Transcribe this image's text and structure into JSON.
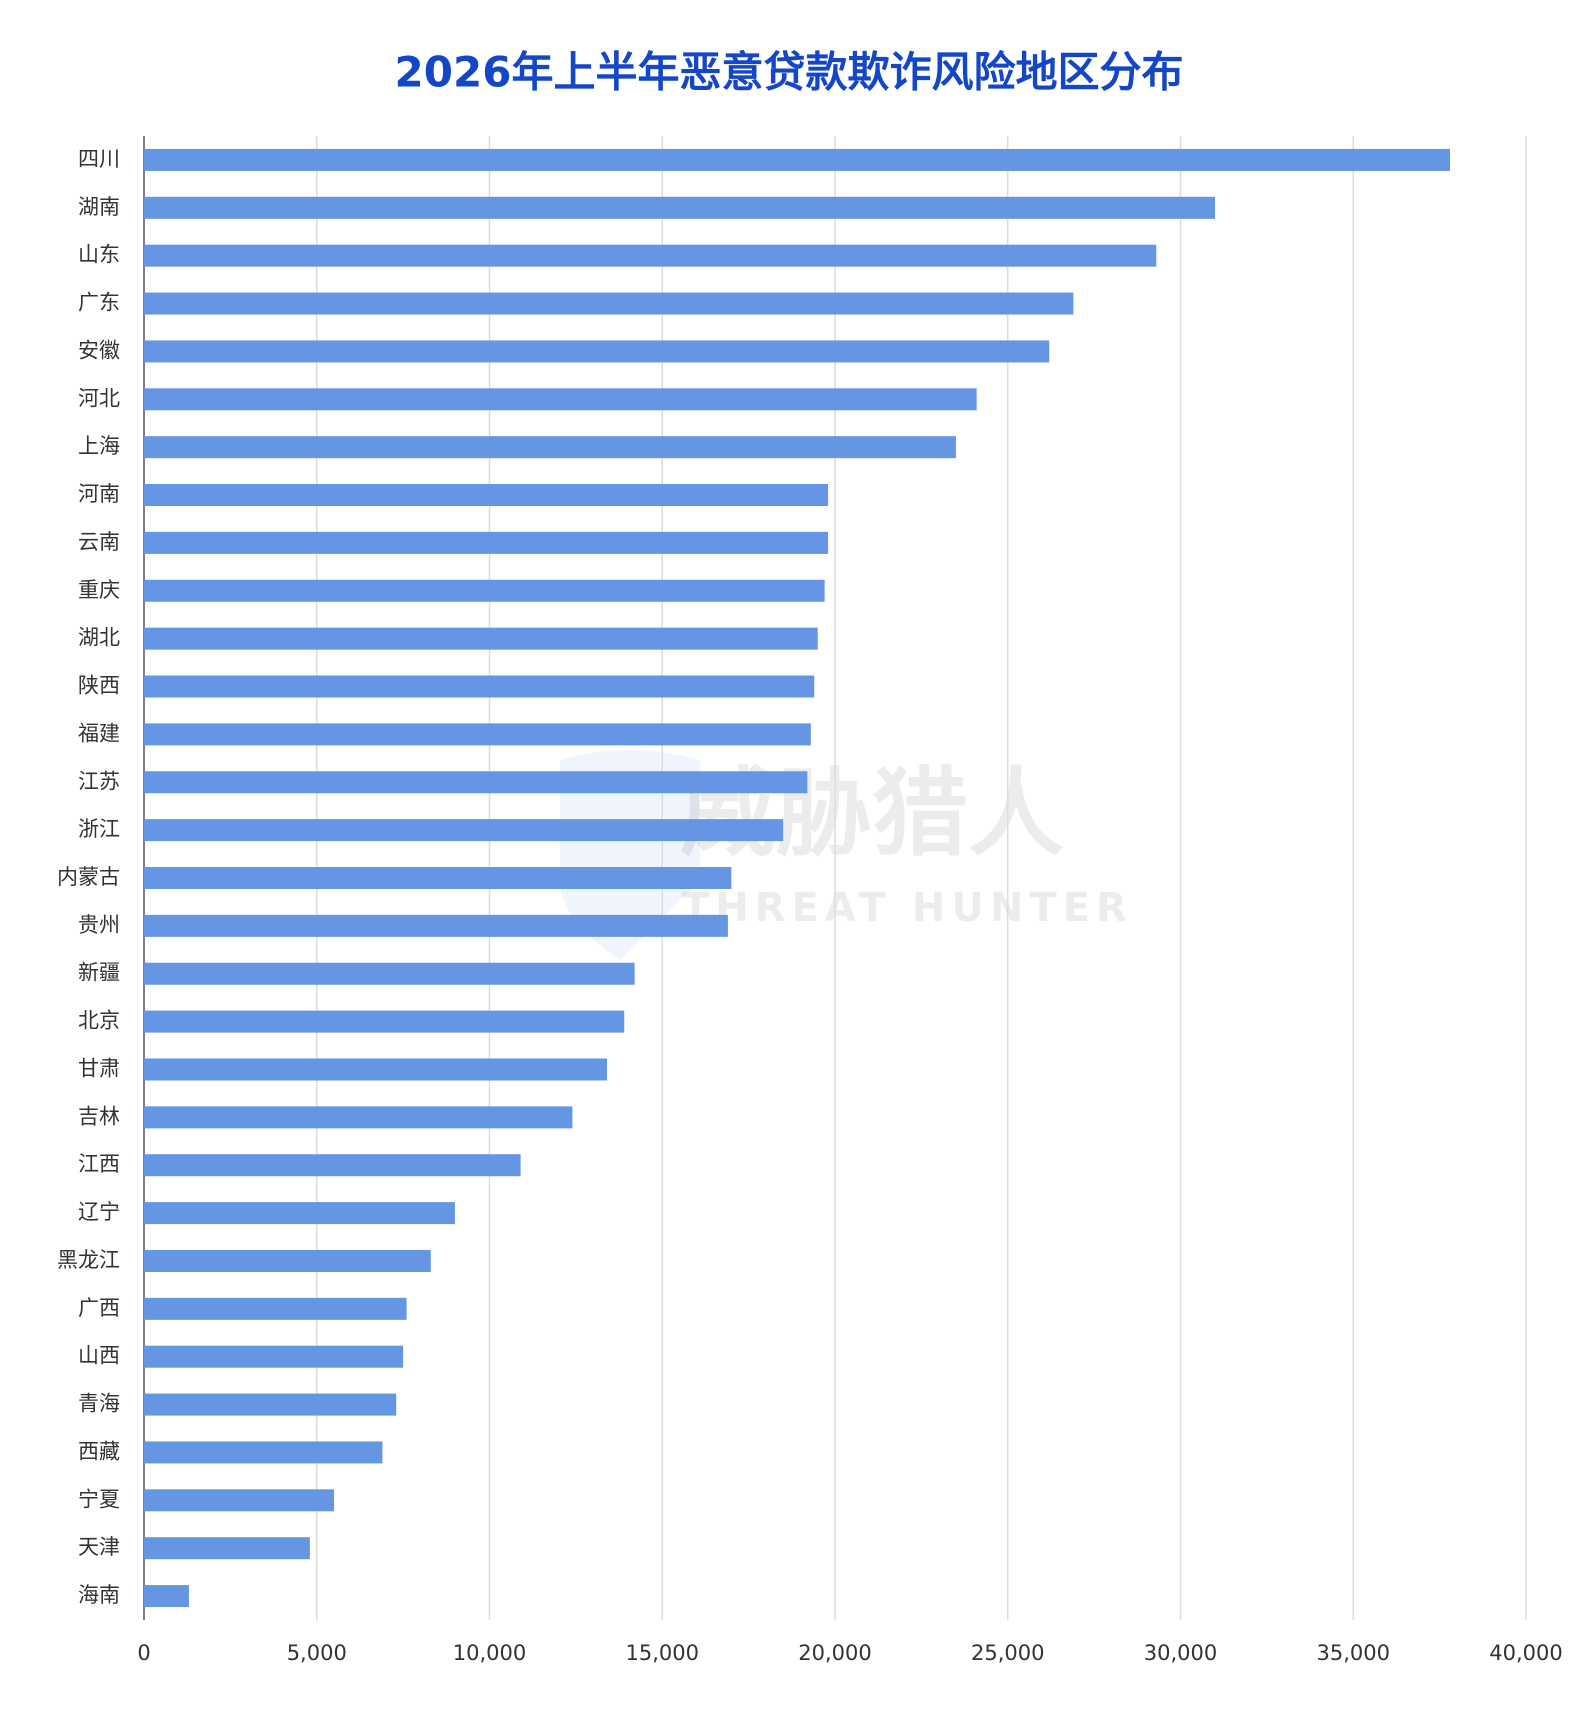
{
  "chart_data": {
    "type": "hbar",
    "title": "2026年上半年恶意贷款欺诈风险地区分布",
    "watermark": [
      "威胁猎人",
      "THREAT HUNTER"
    ],
    "categories": [
      "四川",
      "湖南",
      "山东",
      "广东",
      "安徽",
      "河北",
      "上海",
      "河南",
      "云南",
      "重庆",
      "湖北",
      "陕西",
      "福建",
      "江苏",
      "浙江",
      "内蒙古",
      "贵州",
      "新疆",
      "北京",
      "甘肃",
      "吉林",
      "江西",
      "辽宁",
      "黑龙江",
      "广西",
      "山西",
      "青海",
      "西藏",
      "宁夏",
      "天津",
      "海南"
    ],
    "values": [
      37800,
      31000,
      29300,
      26900,
      26200,
      24100,
      23500,
      19800,
      19800,
      19700,
      19500,
      19400,
      19300,
      19200,
      18500,
      17000,
      16900,
      14200,
      13900,
      13400,
      12400,
      10900,
      9000,
      8300,
      7600,
      7500,
      7300,
      6900,
      5500,
      4800,
      1300
    ],
    "color": "#6496e4",
    "xlim": [
      0,
      40000
    ],
    "xticks": [
      0,
      {
        "value": 5000,
        "label": "5,000"
      },
      {
        "value": 10000,
        "label": "10,000"
      },
      {
        "value": 15000,
        "label": "15,000"
      },
      {
        "value": 20000,
        "label": "20,000"
      },
      {
        "value": 25000,
        "label": "25,000"
      },
      {
        "value": 30000,
        "label": "30,000"
      },
      {
        "value": 35000,
        "label": "35,000"
      },
      {
        "value": 40000,
        "label": "40,000"
      }
    ],
    "grid": true
  }
}
